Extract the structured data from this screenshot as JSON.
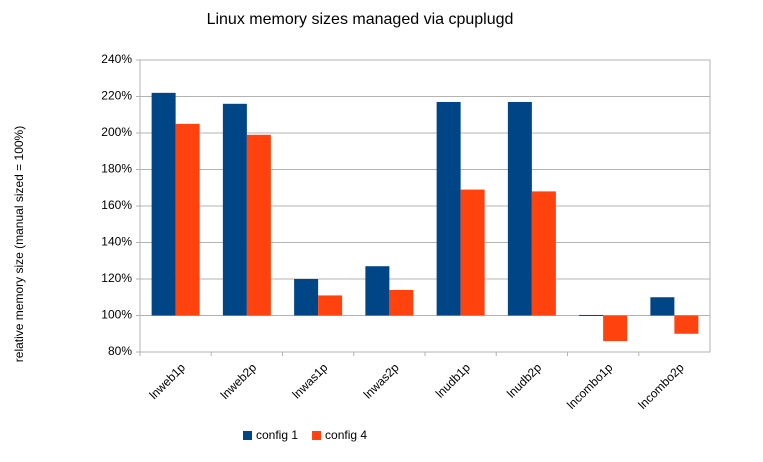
{
  "chart_data": {
    "type": "bar",
    "title": "Linux memory sizes managed via cpuplugd",
    "y_label": "relative memory size (manual sized = 100%)",
    "categories": [
      "lnweb1p",
      "lnweb2p",
      "lnwas1p",
      "lnwas2p",
      "lnudb1p",
      "lnudb2p",
      "lncombo1p",
      "lncombo2p"
    ],
    "series": [
      {
        "name": "config 1",
        "color": "#004586",
        "values": [
          222,
          216,
          120,
          127,
          217,
          217,
          100.3,
          110
        ]
      },
      {
        "name": "config 4",
        "color": "#ff420e",
        "values": [
          205,
          199,
          111,
          114,
          169,
          168,
          86,
          90
        ]
      }
    ],
    "bar_base": 100,
    "ylim": [
      80,
      240
    ],
    "yticks": [
      {
        "value": 80,
        "label": "80%"
      },
      {
        "value": 100,
        "label": "100%"
      },
      {
        "value": 120,
        "label": "120%"
      },
      {
        "value": 140,
        "label": "140%"
      },
      {
        "value": 160,
        "label": "160%"
      },
      {
        "value": 180,
        "label": "180%"
      },
      {
        "value": 200,
        "label": "200%"
      },
      {
        "value": 220,
        "label": "220%"
      },
      {
        "value": 240,
        "label": "240%"
      }
    ],
    "grid": true,
    "legend": "bottom"
  }
}
